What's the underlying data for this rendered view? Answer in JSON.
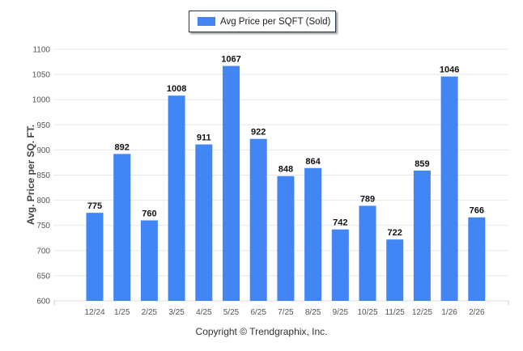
{
  "chart_data": {
    "type": "bar",
    "categories": [
      "12/24",
      "1/25",
      "2/25",
      "3/25",
      "4/25",
      "5/25",
      "6/25",
      "7/25",
      "8/25",
      "9/25",
      "10/25",
      "11/25",
      "12/25",
      "1/26",
      "2/26"
    ],
    "series": [
      {
        "name": "Avg Price per SQFT (Sold)",
        "values": [
          775,
          892,
          760,
          1008,
          911,
          1067,
          922,
          848,
          864,
          742,
          789,
          722,
          859,
          1046,
          766
        ],
        "color": "#4285f4"
      }
    ],
    "ylabel": "Avg. Price per SQ. FT.",
    "xlabel": "",
    "ylim": [
      600,
      1100
    ],
    "yticks": [
      600,
      650,
      700,
      750,
      800,
      850,
      900,
      950,
      1000,
      1050,
      1100
    ],
    "grid": true,
    "legend": "top-center",
    "data_labels": true
  },
  "footer": {
    "copyright": "Copyright © Trendgraphix, Inc."
  }
}
